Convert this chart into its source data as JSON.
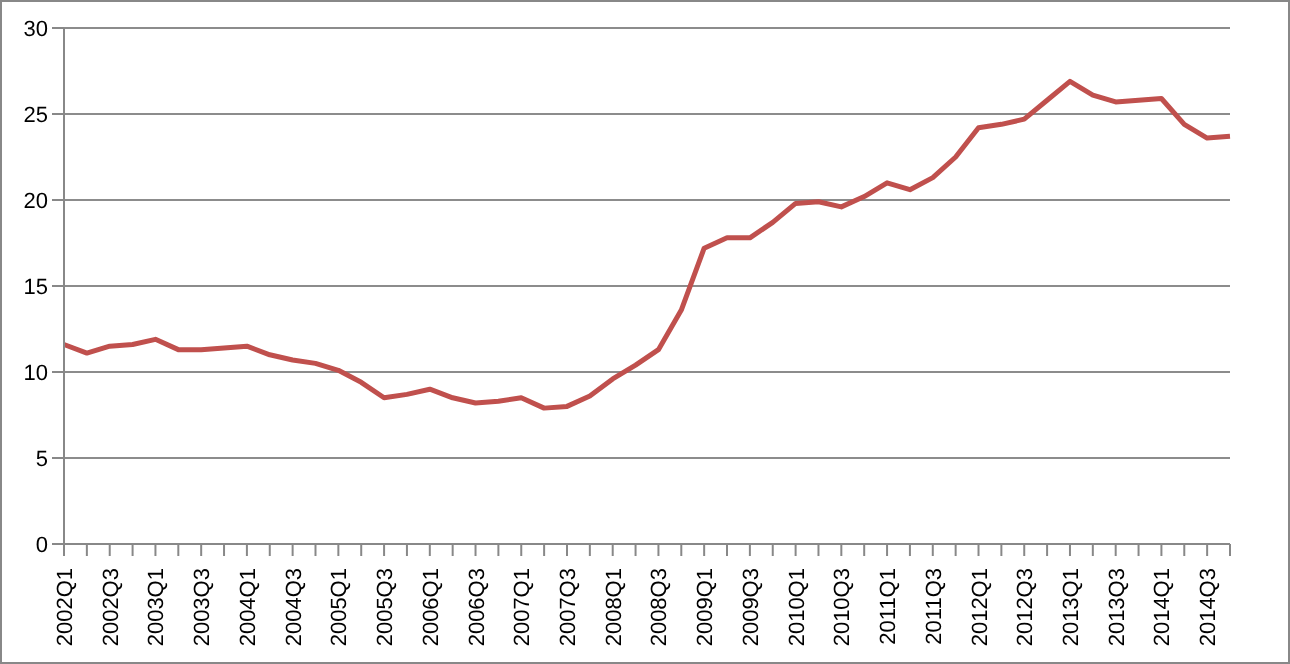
{
  "chart_data": {
    "type": "line",
    "categories": [
      "2002Q1",
      null,
      "2002Q3",
      null,
      "2003Q1",
      null,
      "2003Q3",
      null,
      "2004Q1",
      null,
      "2004Q3",
      null,
      "2005Q1",
      null,
      "2005Q3",
      null,
      "2006Q1",
      null,
      "2006Q3",
      null,
      "2007Q1",
      null,
      "2007Q3",
      null,
      "2008Q1",
      null,
      "2008Q3",
      null,
      "2009Q1",
      null,
      "2009Q3",
      null,
      "2010Q1",
      null,
      "2010Q3",
      null,
      "2011Q1",
      null,
      "2011Q3",
      null,
      "2012Q1",
      null,
      "2012Q3",
      null,
      "2013Q1",
      null,
      "2013Q3",
      null,
      "2014Q1",
      null,
      "2014Q3",
      null
    ],
    "series": [
      {
        "color": "#c0504d",
        "values": [
          11.6,
          11.1,
          11.5,
          11.6,
          11.9,
          11.3,
          11.3,
          11.4,
          11.5,
          11.0,
          10.7,
          10.5,
          10.1,
          9.4,
          8.5,
          8.7,
          9.0,
          8.5,
          8.2,
          8.3,
          8.5,
          7.9,
          8.0,
          8.6,
          9.6,
          10.4,
          11.3,
          13.6,
          17.2,
          17.8,
          17.8,
          18.7,
          19.8,
          19.9,
          19.6,
          20.2,
          21.0,
          20.6,
          21.3,
          22.5,
          24.2,
          24.4,
          24.7,
          25.8,
          26.9,
          26.1,
          25.7,
          25.8,
          25.9,
          24.4,
          23.6,
          23.7
        ]
      }
    ],
    "ylim": [
      0,
      30
    ],
    "yticks": [
      0,
      5,
      10,
      15,
      20,
      25,
      30
    ],
    "grid": "y",
    "legend": false,
    "marker": "none",
    "line_style": "solid"
  }
}
